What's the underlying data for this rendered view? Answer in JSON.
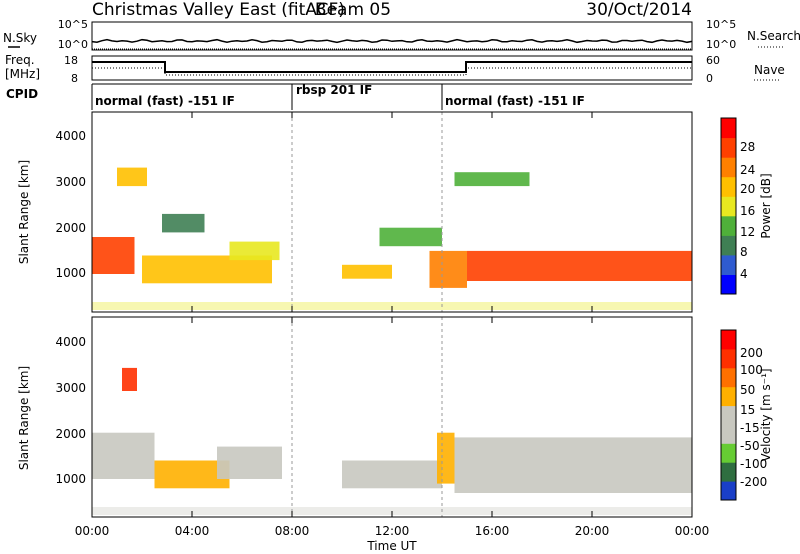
{
  "header": {
    "station": "Christmas Valley East (fitACF)",
    "beam": "Beam 05",
    "date": "30/Oct/2014"
  },
  "noise_panel": {
    "left_label": "N.Sky",
    "left_ticks": [
      "10^5",
      "10^0"
    ],
    "right_ticks": [
      "10^5",
      "10^0"
    ],
    "right_label": "N.Search"
  },
  "freq_panel": {
    "left_label_line1": "Freq.",
    "left_label_line2": "[MHz]",
    "left_ticks": [
      "18",
      "8"
    ],
    "right_ticks": [
      "60",
      "0"
    ],
    "right_label": "Nave"
  },
  "cpid": {
    "label": "CPID",
    "segments": [
      {
        "start_hour": 0,
        "text": "normal (fast) -151 IF"
      },
      {
        "start_hour": 8,
        "text": "rbsp 201 IF"
      },
      {
        "start_hour": 14,
        "text": "normal (fast) -151 IF"
      }
    ]
  },
  "power_panel": {
    "ylabel": "Slant Range [km]",
    "yticks": [
      "4000",
      "3000",
      "2000",
      "1000"
    ],
    "colorbar_label": "Power [dB]",
    "colorbar_ticks": [
      "28",
      "24",
      "20",
      "16",
      "12",
      "8",
      "4"
    ],
    "colors": [
      "#0000ff",
      "#2f5bd0",
      "#3f7f54",
      "#4fb03a",
      "#e8e820",
      "#ffc000",
      "#ff8000",
      "#ff4000",
      "#ff0000"
    ]
  },
  "velocity_panel": {
    "ylabel": "Slant Range [km]",
    "yticks": [
      "4000",
      "3000",
      "2000",
      "1000"
    ],
    "colorbar_label": "Velocity [m s⁻¹]",
    "colorbar_ticks": [
      "200",
      "100",
      "50",
      "15",
      "-15",
      "-50",
      "-100",
      "-200"
    ],
    "colors": [
      "#1a3fc8",
      "#2f6e40",
      "#66cc33",
      "#c8c8c0",
      "#c8c8c0",
      "#ffb000",
      "#ff7000",
      "#ff3000",
      "#ff0000"
    ]
  },
  "xaxis": {
    "label": "Time UT",
    "ticks": [
      "00:00",
      "04:00",
      "08:00",
      "12:00",
      "16:00",
      "20:00",
      "00:00"
    ]
  },
  "chart_data": {
    "type": "heatmap",
    "title": "Christmas Valley East (fitACF) Beam 05 30/Oct/2014",
    "xlabel": "Time UT",
    "xlim": [
      0,
      24
    ],
    "ylabel": "Slant Range [km]",
    "ylim": [
      180,
      4500
    ],
    "panels": [
      {
        "name": "Power [dB]",
        "clim": [
          0,
          32
        ],
        "regions": [
          {
            "t0": 0.0,
            "t1": 1.7,
            "r0": 1000,
            "r1": 1800,
            "value": 26
          },
          {
            "t0": 1.0,
            "t1": 2.2,
            "r0": 2900,
            "r1": 3300,
            "value": 18
          },
          {
            "t0": 2.0,
            "t1": 7.2,
            "r0": 800,
            "r1": 1400,
            "value": 18
          },
          {
            "t0": 2.8,
            "t1": 4.5,
            "r0": 1900,
            "r1": 2300,
            "value": 8
          },
          {
            "t0": 5.5,
            "t1": 7.5,
            "r0": 1300,
            "r1": 1700,
            "value": 14
          },
          {
            "t0": 10.0,
            "t1": 12.0,
            "r0": 900,
            "r1": 1200,
            "value": 20
          },
          {
            "t0": 11.5,
            "t1": 14.0,
            "r0": 1600,
            "r1": 2000,
            "value": 12
          },
          {
            "t0": 13.5,
            "t1": 15.0,
            "r0": 700,
            "r1": 1500,
            "value": 24
          },
          {
            "t0": 15.0,
            "t1": 24.0,
            "r0": 850,
            "r1": 1500,
            "value": 28
          },
          {
            "t0": 14.5,
            "t1": 17.5,
            "r0": 2900,
            "r1": 3200,
            "value": 10
          }
        ]
      },
      {
        "name": "Velocity [m s⁻¹]",
        "clim": [
          -250,
          250
        ],
        "regions": [
          {
            "t0": 0.0,
            "t1": 2.5,
            "r0": 1000,
            "r1": 2000,
            "value": 0
          },
          {
            "t0": 2.5,
            "t1": 5.5,
            "r0": 800,
            "r1": 1400,
            "value": 40
          },
          {
            "t0": 5.0,
            "t1": 7.6,
            "r0": 1000,
            "r1": 1700,
            "value": 0
          },
          {
            "t0": 10.0,
            "t1": 14.0,
            "r0": 800,
            "r1": 1400,
            "value": -30
          },
          {
            "t0": 13.8,
            "t1": 14.5,
            "r0": 900,
            "r1": 2000,
            "value": 40
          },
          {
            "t0": 14.5,
            "t1": 24.0,
            "r0": 700,
            "r1": 1900,
            "value": 0
          },
          {
            "t0": 1.2,
            "t1": 1.8,
            "r0": 2900,
            "r1": 3400,
            "value": 200
          }
        ]
      }
    ]
  }
}
